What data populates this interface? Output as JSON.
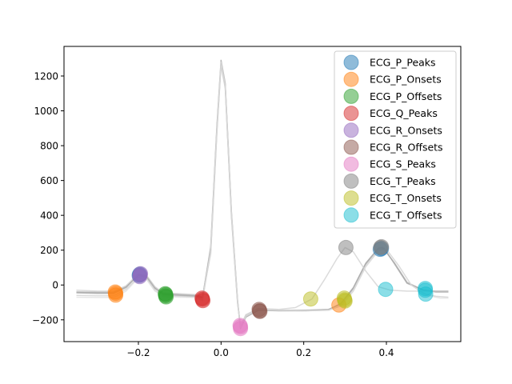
{
  "chart_data": {
    "type": "line",
    "title": "",
    "xlabel": "",
    "ylabel": "",
    "xlim": [
      -0.38,
      0.58
    ],
    "ylim": [
      -325,
      1370
    ],
    "xticks": [
      -0.2,
      0.0,
      0.2,
      0.4
    ],
    "xtick_labels": [
      "−0.2",
      "0.0",
      "0.2",
      "0.4"
    ],
    "yticks": [
      -200,
      0,
      200,
      400,
      600,
      800,
      1000,
      1200
    ],
    "ytick_labels": [
      "−200",
      "0",
      "200",
      "400",
      "600",
      "800",
      "1000",
      "1200"
    ],
    "grid": false,
    "legend_position": "top-right",
    "traces": [
      {
        "color": "#aaaaaa",
        "opacity": 0.85,
        "points": [
          [
            -0.35,
            -40
          ],
          [
            -0.3,
            -42
          ],
          [
            -0.26,
            -42
          ],
          [
            -0.23,
            -10
          ],
          [
            -0.2,
            55
          ],
          [
            -0.18,
            45
          ],
          [
            -0.16,
            -20
          ],
          [
            -0.14,
            -50
          ],
          [
            -0.1,
            -55
          ],
          [
            -0.06,
            -60
          ],
          [
            -0.045,
            -70
          ],
          [
            -0.025,
            200
          ],
          [
            -0.01,
            900
          ],
          [
            0.0,
            1270
          ],
          [
            0.01,
            1150
          ],
          [
            0.025,
            400
          ],
          [
            0.04,
            -100
          ],
          [
            0.047,
            -240
          ],
          [
            0.06,
            -180
          ],
          [
            0.09,
            -140
          ],
          [
            0.14,
            -145
          ],
          [
            0.2,
            -145
          ],
          [
            0.26,
            -140
          ],
          [
            0.29,
            -110
          ],
          [
            0.32,
            -20
          ],
          [
            0.35,
            120
          ],
          [
            0.38,
            205
          ],
          [
            0.395,
            210
          ],
          [
            0.42,
            120
          ],
          [
            0.45,
            10
          ],
          [
            0.49,
            -30
          ],
          [
            0.52,
            -40
          ],
          [
            0.55,
            -40
          ]
        ]
      },
      {
        "color": "#aaaaaa",
        "opacity": 0.85,
        "points": [
          [
            -0.35,
            -45
          ],
          [
            -0.3,
            -48
          ],
          [
            -0.26,
            -48
          ],
          [
            -0.23,
            -15
          ],
          [
            -0.2,
            60
          ],
          [
            -0.18,
            50
          ],
          [
            -0.16,
            -15
          ],
          [
            -0.14,
            -55
          ],
          [
            -0.1,
            -60
          ],
          [
            -0.06,
            -65
          ],
          [
            -0.045,
            -75
          ],
          [
            -0.025,
            220
          ],
          [
            -0.01,
            920
          ],
          [
            0.0,
            1290
          ],
          [
            0.01,
            1160
          ],
          [
            0.025,
            420
          ],
          [
            0.04,
            -90
          ],
          [
            0.047,
            -250
          ],
          [
            0.06,
            -185
          ],
          [
            0.09,
            -145
          ],
          [
            0.14,
            -148
          ],
          [
            0.2,
            -148
          ],
          [
            0.26,
            -143
          ],
          [
            0.29,
            -105
          ],
          [
            0.32,
            -15
          ],
          [
            0.35,
            125
          ],
          [
            0.38,
            210
          ],
          [
            0.39,
            218
          ],
          [
            0.42,
            125
          ],
          [
            0.45,
            15
          ],
          [
            0.49,
            -30
          ],
          [
            0.52,
            -35
          ],
          [
            0.55,
            -35
          ]
        ]
      },
      {
        "color": "#cccccc",
        "opacity": 0.7,
        "points": [
          [
            -0.35,
            -30
          ],
          [
            -0.3,
            -35
          ],
          [
            -0.26,
            -35
          ],
          [
            -0.23,
            -5
          ],
          [
            -0.2,
            65
          ],
          [
            -0.18,
            55
          ],
          [
            -0.16,
            -10
          ],
          [
            -0.14,
            -45
          ],
          [
            -0.1,
            -50
          ],
          [
            -0.06,
            -55
          ],
          [
            -0.045,
            -65
          ],
          [
            -0.025,
            180
          ],
          [
            -0.01,
            880
          ],
          [
            0.0,
            1260
          ],
          [
            0.01,
            1130
          ],
          [
            0.025,
            390
          ],
          [
            0.04,
            -110
          ],
          [
            0.047,
            -235
          ],
          [
            0.06,
            -170
          ],
          [
            0.09,
            -135
          ],
          [
            0.14,
            -140
          ],
          [
            0.18,
            -130
          ],
          [
            0.22,
            -80
          ],
          [
            0.25,
            30
          ],
          [
            0.28,
            150
          ],
          [
            0.3,
            215
          ],
          [
            0.32,
            190
          ],
          [
            0.35,
            80
          ],
          [
            0.38,
            -10
          ],
          [
            0.41,
            -30
          ],
          [
            0.45,
            -35
          ],
          [
            0.5,
            -35
          ],
          [
            0.55,
            -35
          ]
        ]
      },
      {
        "color": "#cccccc",
        "opacity": 0.7,
        "points": [
          [
            -0.35,
            -60
          ],
          [
            -0.3,
            -62
          ],
          [
            -0.26,
            -62
          ],
          [
            -0.23,
            -25
          ],
          [
            -0.2,
            45
          ],
          [
            -0.18,
            38
          ],
          [
            -0.16,
            -30
          ],
          [
            -0.14,
            -60
          ],
          [
            -0.1,
            -65
          ],
          [
            -0.06,
            -70
          ],
          [
            -0.045,
            -85
          ],
          [
            -0.025,
            190
          ],
          [
            -0.01,
            890
          ],
          [
            0.0,
            1270
          ],
          [
            0.01,
            1140
          ],
          [
            0.025,
            410
          ],
          [
            0.04,
            -95
          ],
          [
            0.047,
            -245
          ],
          [
            0.06,
            -175
          ],
          [
            0.09,
            -140
          ],
          [
            0.14,
            -145
          ],
          [
            0.2,
            -148
          ],
          [
            0.26,
            -145
          ],
          [
            0.29,
            -120
          ],
          [
            0.32,
            -35
          ],
          [
            0.35,
            105
          ],
          [
            0.38,
            195
          ],
          [
            0.4,
            205
          ],
          [
            0.43,
            110
          ],
          [
            0.46,
            0
          ],
          [
            0.49,
            -50
          ],
          [
            0.52,
            -65
          ],
          [
            0.55,
            -70
          ]
        ]
      },
      {
        "color": "#dddddd",
        "opacity": 0.7,
        "points": [
          [
            -0.35,
            -70
          ],
          [
            -0.3,
            -72
          ],
          [
            -0.26,
            -72
          ],
          [
            -0.23,
            -35
          ],
          [
            -0.2,
            40
          ],
          [
            -0.18,
            30
          ],
          [
            -0.16,
            -35
          ],
          [
            -0.14,
            -65
          ],
          [
            -0.1,
            -70
          ],
          [
            -0.06,
            -72
          ],
          [
            -0.045,
            -90
          ],
          [
            -0.025,
            200
          ],
          [
            -0.01,
            900
          ],
          [
            0.0,
            1280
          ],
          [
            0.01,
            1150
          ],
          [
            0.025,
            410
          ],
          [
            0.04,
            -100
          ],
          [
            0.047,
            -245
          ],
          [
            0.06,
            -180
          ],
          [
            0.09,
            -140
          ],
          [
            0.14,
            -145
          ],
          [
            0.2,
            -148
          ],
          [
            0.26,
            -145
          ],
          [
            0.29,
            -115
          ],
          [
            0.32,
            -30
          ],
          [
            0.35,
            110
          ],
          [
            0.38,
            200
          ],
          [
            0.4,
            205
          ],
          [
            0.43,
            110
          ],
          [
            0.46,
            0
          ],
          [
            0.5,
            -60
          ],
          [
            0.53,
            -75
          ],
          [
            0.55,
            -75
          ]
        ]
      }
    ],
    "series": [
      {
        "name": "ECG_P_Peaks",
        "color": "#1f77b4",
        "points": [
          [
            -0.198,
            55
          ],
          [
            -0.197,
            62
          ],
          [
            0.385,
            205
          ],
          [
            0.388,
            210
          ]
        ]
      },
      {
        "name": "ECG_P_Onsets",
        "color": "#ff7f0e",
        "points": [
          [
            -0.256,
            -40
          ],
          [
            -0.255,
            -48
          ],
          [
            -0.255,
            -58
          ],
          [
            0.285,
            -115
          ]
        ]
      },
      {
        "name": "ECG_P_Offsets",
        "color": "#2ca02c",
        "points": [
          [
            -0.135,
            -50
          ],
          [
            -0.134,
            -55
          ],
          [
            -0.134,
            -62
          ],
          [
            -0.133,
            -68
          ]
        ]
      },
      {
        "name": "ECG_Q_Peaks",
        "color": "#d62728",
        "points": [
          [
            -0.046,
            -75
          ],
          [
            -0.045,
            -82
          ],
          [
            -0.044,
            -90
          ]
        ]
      },
      {
        "name": "ECG_R_Onsets",
        "color": "#9467bd",
        "points": [
          [
            -0.197,
            48
          ],
          [
            -0.196,
            58
          ],
          [
            -0.195,
            65
          ]
        ]
      },
      {
        "name": "ECG_R_Offsets",
        "color": "#8c564b",
        "points": [
          [
            0.092,
            -140
          ],
          [
            0.093,
            -148
          ],
          [
            0.094,
            -152
          ]
        ]
      },
      {
        "name": "ECG_S_Peaks",
        "color": "#e377c2",
        "points": [
          [
            0.046,
            -232
          ],
          [
            0.047,
            -240
          ],
          [
            0.047,
            -250
          ]
        ]
      },
      {
        "name": "ECG_T_Peaks",
        "color": "#7f7f7f",
        "points": [
          [
            0.302,
            215
          ],
          [
            0.386,
            215
          ],
          [
            0.388,
            220
          ]
        ]
      },
      {
        "name": "ECG_T_Onsets",
        "color": "#bcbd22",
        "points": [
          [
            0.217,
            -80
          ],
          [
            0.298,
            -75
          ],
          [
            0.299,
            -85
          ],
          [
            0.3,
            -92
          ]
        ]
      },
      {
        "name": "ECG_T_Offsets",
        "color": "#17becf",
        "points": [
          [
            0.398,
            -25
          ],
          [
            0.494,
            -20
          ],
          [
            0.494,
            -30
          ],
          [
            0.495,
            -52
          ]
        ]
      }
    ]
  }
}
